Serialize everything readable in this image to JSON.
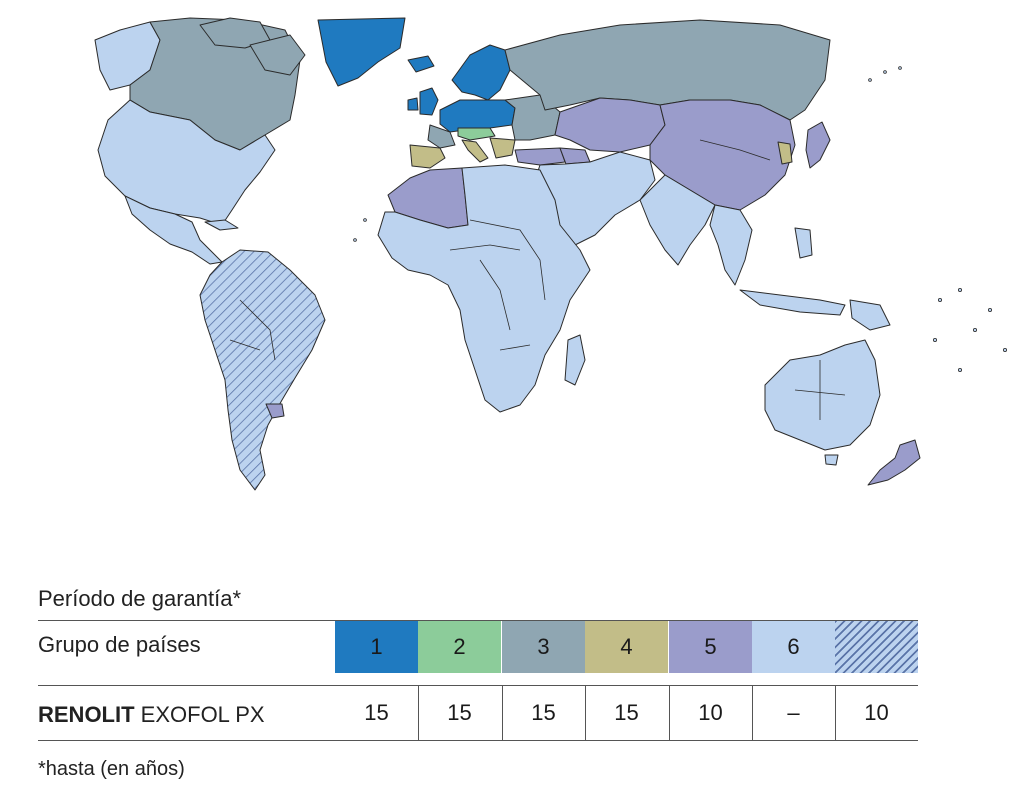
{
  "legend": {
    "title": "Período de garantía*",
    "groups_label": "Grupo de países",
    "product_brand": "RENOLIT",
    "product_name": " EXOFOL PX",
    "footnote": "*hasta (en años)",
    "groups": [
      {
        "label": "1",
        "color": "#1f7ac0",
        "value": "15"
      },
      {
        "label": "2",
        "color": "#8ccc9a",
        "value": "15"
      },
      {
        "label": "3",
        "color": "#8fa6b2",
        "value": "15"
      },
      {
        "label": "4",
        "color": "#c2bd88",
        "value": "15"
      },
      {
        "label": "5",
        "color": "#9a9ccb",
        "value": "10"
      },
      {
        "label": "6",
        "color": "#bcd3ef",
        "value": "–"
      },
      {
        "label": "",
        "color": "#bcd3ef",
        "pattern": "hatched",
        "value": "10"
      }
    ]
  },
  "map": {
    "colors": {
      "group1": "#1f7ac0",
      "group2": "#8ccc9a",
      "group3": "#8fa6b2",
      "group4": "#c2bd88",
      "group5": "#9a9ccb",
      "group6": "#bcd3ef",
      "hatch": "#5a74a8",
      "outline": "#2b2b2b"
    }
  }
}
